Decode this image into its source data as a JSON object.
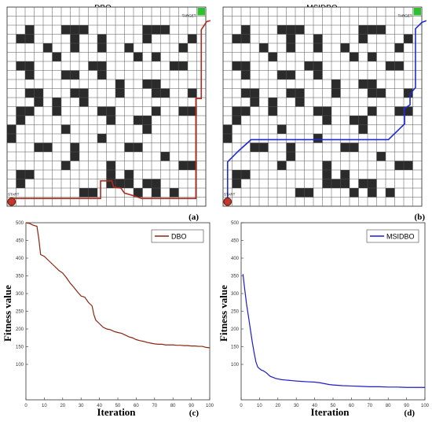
{
  "panels": {
    "a": {
      "title": "DBO",
      "start_label": "START",
      "target_label": "TARGET",
      "panel_label": "(a)",
      "path_color": "#b22a1c",
      "path": [
        [
          0,
          0
        ],
        [
          0,
          0.35
        ],
        [
          4.45,
          0.35
        ],
        [
          9.85,
          0.35
        ],
        [
          9.85,
          2.3
        ],
        [
          11.1,
          2.3
        ],
        [
          11.3,
          1.6
        ],
        [
          12.1,
          1.5
        ],
        [
          12.5,
          0.95
        ],
        [
          13.7,
          0.6
        ],
        [
          14.4,
          0.35
        ],
        [
          20.4,
          0.35
        ],
        [
          20.4,
          11.4
        ],
        [
          21.0,
          11.4
        ],
        [
          21.0,
          19.0
        ],
        [
          21.6,
          19.9
        ],
        [
          22,
          20
        ]
      ]
    },
    "b": {
      "title": "MSIDBO",
      "start_label": "START",
      "target_label": "TARGET",
      "panel_label": "(b)",
      "path_color": "#1c2bd4",
      "path": [
        [
          0,
          0
        ],
        [
          0,
          4.4
        ],
        [
          1.2,
          5.6
        ],
        [
          2.6,
          6.85
        ],
        [
          17.8,
          6.85
        ],
        [
          19.6,
          8.6
        ],
        [
          19.6,
          10.3
        ],
        [
          20.2,
          10.7
        ],
        [
          20.2,
          11.9
        ],
        [
          20.8,
          12.6
        ],
        [
          20.8,
          19.1
        ],
        [
          21.5,
          19.8
        ],
        [
          22,
          20
        ]
      ]
    },
    "c": {
      "panel_label": "(c)",
      "xlabel": "Iteration",
      "ylabel": "Fitness value",
      "yticks": [
        500,
        450,
        400,
        350,
        300,
        250,
        200,
        150,
        100
      ],
      "xticks": [
        0,
        10,
        20,
        30,
        40,
        50,
        60,
        70,
        80,
        90,
        100
      ]
    },
    "d": {
      "panel_label": "(d)",
      "xlabel": "Iteration",
      "ylabel": "Fitness value",
      "yticks": [
        500,
        450,
        400,
        350,
        300,
        250,
        200,
        150,
        100
      ],
      "xticks": [
        0,
        10,
        20,
        30,
        40,
        50,
        60,
        70,
        80,
        90,
        100
      ]
    }
  },
  "obstacles": [
    [
      2,
      19
    ],
    [
      1,
      18
    ],
    [
      2,
      18
    ],
    [
      6,
      19
    ],
    [
      7,
      19
    ],
    [
      8,
      19
    ],
    [
      7,
      18
    ],
    [
      7,
      17
    ],
    [
      4,
      17
    ],
    [
      5,
      16
    ],
    [
      10,
      18
    ],
    [
      10,
      17
    ],
    [
      15,
      19
    ],
    [
      16,
      19
    ],
    [
      17,
      19
    ],
    [
      15,
      18
    ],
    [
      14,
      16
    ],
    [
      13,
      17
    ],
    [
      19,
      17
    ],
    [
      20,
      18
    ],
    [
      18,
      15
    ],
    [
      19,
      15
    ],
    [
      16,
      16
    ],
    [
      2,
      15
    ],
    [
      2,
      14
    ],
    [
      1,
      15
    ],
    [
      9,
      15
    ],
    [
      10,
      15
    ],
    [
      10,
      14
    ],
    [
      6,
      14
    ],
    [
      7,
      14
    ],
    [
      12,
      13
    ],
    [
      15,
      13
    ],
    [
      16,
      13
    ],
    [
      16,
      12
    ],
    [
      12,
      12
    ],
    [
      3,
      12
    ],
    [
      3,
      11
    ],
    [
      2,
      12
    ],
    [
      7,
      12
    ],
    [
      8,
      12
    ],
    [
      8,
      11
    ],
    [
      17,
      12
    ],
    [
      20,
      12
    ],
    [
      1,
      9
    ],
    [
      1,
      10
    ],
    [
      2,
      10
    ],
    [
      5,
      10
    ],
    [
      5,
      11
    ],
    [
      10,
      10
    ],
    [
      11,
      10
    ],
    [
      11,
      9
    ],
    [
      19,
      10
    ],
    [
      20,
      10
    ],
    [
      16,
      10
    ],
    [
      6,
      8
    ],
    [
      14,
      9
    ],
    [
      15,
      9
    ],
    [
      15,
      8
    ],
    [
      0,
      8
    ],
    [
      0,
      7
    ],
    [
      10,
      7
    ],
    [
      3,
      6
    ],
    [
      4,
      6
    ],
    [
      13,
      6
    ],
    [
      14,
      6
    ],
    [
      7,
      5
    ],
    [
      7,
      6
    ],
    [
      17,
      5
    ],
    [
      6,
      4
    ],
    [
      19,
      4
    ],
    [
      20,
      4
    ],
    [
      1,
      3
    ],
    [
      2,
      3
    ],
    [
      1,
      2
    ],
    [
      11,
      2
    ],
    [
      12,
      2
    ],
    [
      13,
      3
    ],
    [
      13,
      2
    ],
    [
      8,
      1
    ],
    [
      9,
      1
    ],
    [
      16,
      1
    ],
    [
      16,
      2
    ],
    [
      18,
      1
    ],
    [
      14,
      1
    ],
    [
      15,
      2
    ],
    [
      11,
      3
    ],
    [
      11,
      4
    ]
  ],
  "chart_data": [
    {
      "type": "line",
      "series": [
        {
          "name": "DBO",
          "color": "#8b2410",
          "x": [
            0,
            2,
            4,
            6,
            7,
            8,
            10,
            12,
            14,
            16,
            18,
            20,
            22,
            24,
            26,
            28,
            30,
            32,
            34,
            36,
            37,
            38,
            40,
            42,
            44,
            46,
            48,
            50,
            52,
            54,
            56,
            58,
            60,
            62,
            64,
            66,
            68,
            70,
            72,
            74,
            76,
            78,
            80,
            82,
            84,
            86,
            88,
            90,
            92,
            94,
            96,
            98,
            100
          ],
          "values": [
            500,
            498,
            493,
            490,
            455,
            410,
            405,
            395,
            385,
            375,
            365,
            358,
            345,
            330,
            318,
            305,
            293,
            290,
            275,
            265,
            240,
            225,
            215,
            205,
            200,
            198,
            193,
            190,
            188,
            183,
            178,
            175,
            170,
            167,
            165,
            162,
            160,
            158,
            157,
            157,
            155,
            155,
            155,
            154,
            154,
            153,
            153,
            152,
            152,
            151,
            151,
            148,
            147
          ]
        }
      ],
      "xlabel": "Iteration",
      "ylabel": "Fitness value",
      "xlim": [
        0,
        100
      ],
      "ylim": [
        0,
        500
      ],
      "yticks": [
        500,
        450,
        400,
        350,
        300,
        250,
        200,
        150,
        100
      ],
      "xticks": [
        0,
        10,
        20,
        30,
        40,
        50,
        60,
        70,
        80,
        90,
        100
      ],
      "grid": false,
      "legend": "top-right"
    },
    {
      "type": "line",
      "series": [
        {
          "name": "MSIDBO",
          "color": "#1c1cc8",
          "x": [
            1,
            1.5,
            2,
            3,
            4,
            5,
            6,
            7,
            8,
            9,
            10,
            11,
            12,
            13,
            14,
            15,
            16,
            17,
            18,
            19,
            20,
            22,
            24,
            26,
            28,
            30,
            33,
            36,
            40,
            43,
            46,
            48,
            50,
            55,
            60,
            65,
            70,
            75,
            80,
            85,
            90,
            95,
            100
          ],
          "values": [
            355,
            332,
            310,
            268,
            235,
            200,
            165,
            135,
            108,
            93,
            88,
            84,
            82,
            79,
            75,
            70,
            66,
            64,
            62,
            60,
            59,
            57,
            56,
            55,
            54,
            53,
            52,
            51,
            50,
            48,
            45,
            43,
            42,
            40,
            39,
            38,
            37,
            37,
            36,
            36,
            35,
            35,
            35
          ]
        }
      ],
      "xlabel": "Iteration",
      "ylabel": "Fitness value",
      "xlim": [
        0,
        100
      ],
      "ylim": [
        0,
        500
      ],
      "yticks": [
        500,
        450,
        400,
        350,
        300,
        250,
        200,
        150,
        100
      ],
      "xticks": [
        0,
        10,
        20,
        30,
        40,
        50,
        60,
        70,
        80,
        90,
        100
      ],
      "grid": false,
      "legend": "top-right"
    }
  ]
}
